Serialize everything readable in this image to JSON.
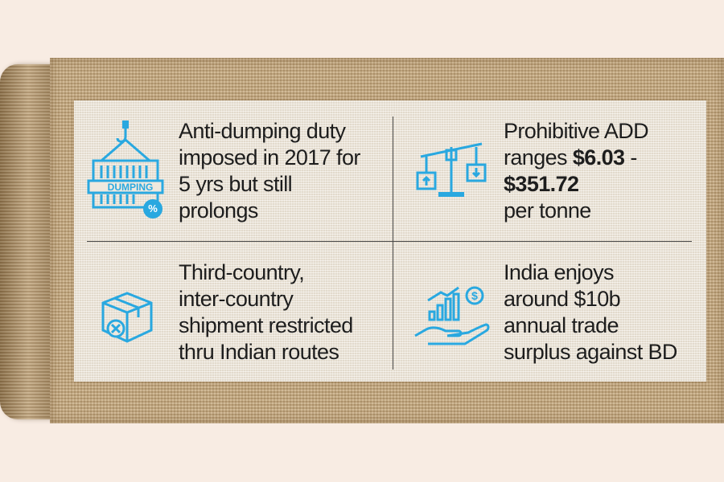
{
  "colors": {
    "icon_blue": "#29a8e0",
    "text": "#1d1d1d",
    "background": "#f8ece3"
  },
  "items": [
    {
      "icon": "dumping-container-icon",
      "icon_label": "DUMPING",
      "icon_badge": "%",
      "lines": [
        "Anti-dumping duty",
        "imposed in 2017 for",
        "5 yrs but still",
        "prolongs"
      ]
    },
    {
      "icon": "scale-balance-icon",
      "line1": "Prohibitive ADD",
      "line2_plain": "ranges ",
      "line2_bold": "$6.03",
      "line2_after": " -",
      "line3_bold": "$351.72",
      "line4": "per tonne"
    },
    {
      "icon": "restricted-box-icon",
      "lines": [
        "Third-country,",
        "inter-country",
        "shipment restricted",
        "thru Indian routes"
      ]
    },
    {
      "icon": "hand-growth-dollar-icon",
      "icon_symbol": "$",
      "lines": [
        "India enjoys",
        "around $10b",
        "annual trade",
        "surplus against BD"
      ]
    }
  ]
}
